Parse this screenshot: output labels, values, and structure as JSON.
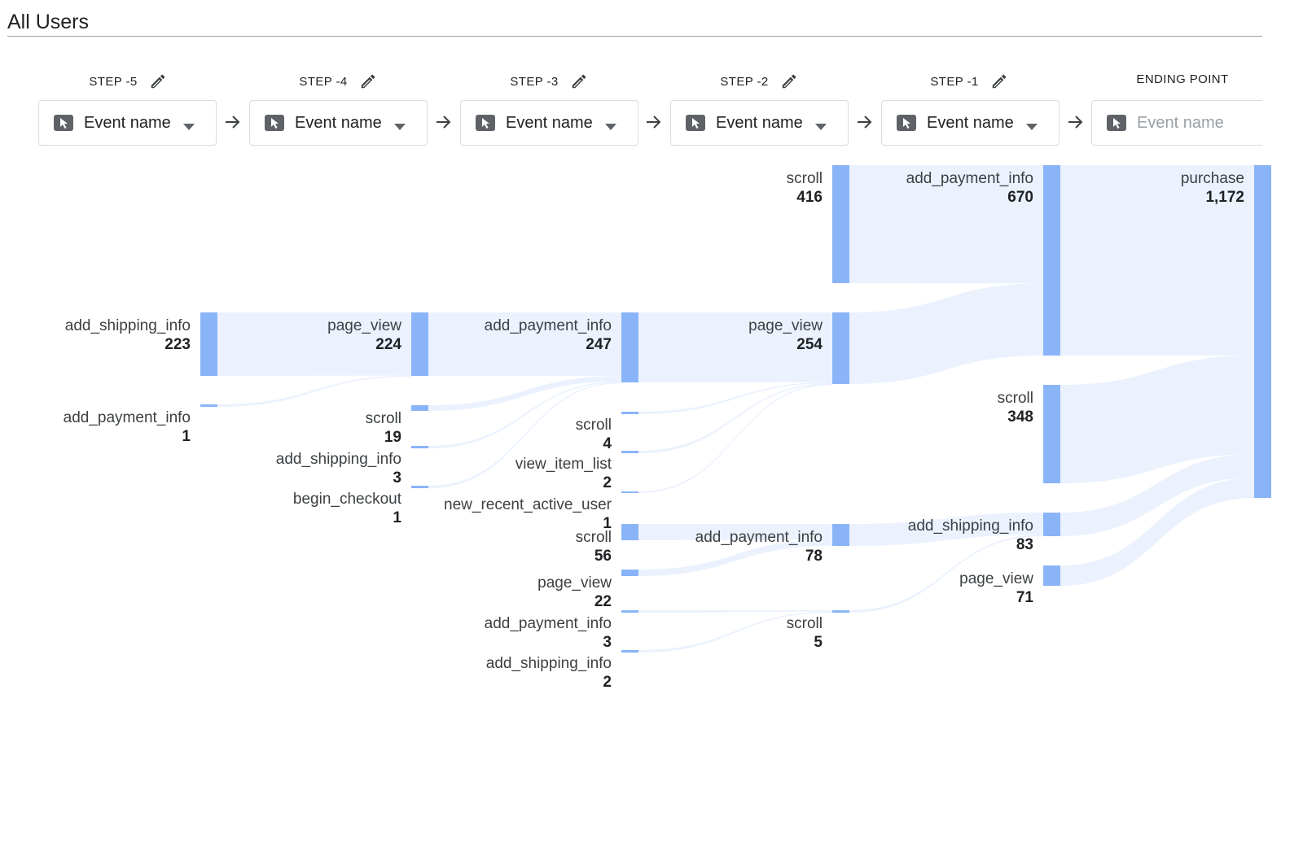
{
  "segment": {
    "title": "All Users"
  },
  "steps": [
    {
      "label": "STEP -5",
      "dropdown": "Event name",
      "placeholder": false
    },
    {
      "label": "STEP -4",
      "dropdown": "Event name",
      "placeholder": false
    },
    {
      "label": "STEP -3",
      "dropdown": "Event name",
      "placeholder": false
    },
    {
      "label": "STEP -2",
      "dropdown": "Event name",
      "placeholder": false
    },
    {
      "label": "STEP -1",
      "dropdown": "Event name",
      "placeholder": false
    },
    {
      "label": "ENDING POINT",
      "dropdown": "Event name",
      "placeholder": true
    }
  ],
  "icons": {
    "edit": "pencil-icon",
    "dropdown_type": "cursor-pointer-icon",
    "dropdown_caret": "caret-down-icon",
    "flow": "arrow-right-icon"
  },
  "colors": {
    "node": "#8ab4f8",
    "link": "#e8f0fe",
    "text": "#202124"
  },
  "flow": {
    "nodes": [
      {
        "step": 0,
        "name": "add_shipping_info",
        "count": "223"
      },
      {
        "step": 0,
        "name": "add_payment_info",
        "count": "1"
      },
      {
        "step": 1,
        "name": "page_view",
        "count": "224"
      },
      {
        "step": 1,
        "name": "scroll",
        "count": "19"
      },
      {
        "step": 1,
        "name": "add_shipping_info",
        "count": "3"
      },
      {
        "step": 1,
        "name": "begin_checkout",
        "count": "1"
      },
      {
        "step": 2,
        "name": "add_payment_info",
        "count": "247"
      },
      {
        "step": 2,
        "name": "scroll",
        "count": "4"
      },
      {
        "step": 2,
        "name": "view_item_list",
        "count": "2"
      },
      {
        "step": 2,
        "name": "new_recent_active_user",
        "count": "1"
      },
      {
        "step": 2,
        "name": "scroll",
        "count": "56"
      },
      {
        "step": 2,
        "name": "page_view",
        "count": "22"
      },
      {
        "step": 2,
        "name": "add_payment_info",
        "count": "3"
      },
      {
        "step": 2,
        "name": "add_shipping_info",
        "count": "2"
      },
      {
        "step": 3,
        "name": "scroll",
        "count": "416"
      },
      {
        "step": 3,
        "name": "page_view",
        "count": "254"
      },
      {
        "step": 3,
        "name": "add_payment_info",
        "count": "78"
      },
      {
        "step": 3,
        "name": "scroll",
        "count": "5"
      },
      {
        "step": 4,
        "name": "add_payment_info",
        "count": "670"
      },
      {
        "step": 4,
        "name": "scroll",
        "count": "348"
      },
      {
        "step": 4,
        "name": "add_shipping_info",
        "count": "83"
      },
      {
        "step": 4,
        "name": "page_view",
        "count": "71"
      },
      {
        "step": 5,
        "name": "purchase",
        "count": "1,172"
      }
    ],
    "links": [
      {
        "from": 0,
        "to": 2,
        "value": 223
      },
      {
        "from": 1,
        "to": 2,
        "value": 1
      },
      {
        "from": 2,
        "to": 6,
        "value": 224
      },
      {
        "from": 3,
        "to": 6,
        "value": 19
      },
      {
        "from": 4,
        "to": 6,
        "value": 3
      },
      {
        "from": 5,
        "to": 6,
        "value": 1
      },
      {
        "from": 6,
        "to": 15,
        "value": 247
      },
      {
        "from": 7,
        "to": 15,
        "value": 4
      },
      {
        "from": 8,
        "to": 15,
        "value": 2
      },
      {
        "from": 9,
        "to": 15,
        "value": 1
      },
      {
        "from": 10,
        "to": 16,
        "value": 56
      },
      {
        "from": 11,
        "to": 16,
        "value": 22
      },
      {
        "from": 12,
        "to": 17,
        "value": 3
      },
      {
        "from": 13,
        "to": 17,
        "value": 2
      },
      {
        "from": 14,
        "to": 18,
        "value": 416
      },
      {
        "from": 15,
        "to": 18,
        "value": 254
      },
      {
        "from": 16,
        "to": 20,
        "value": 78
      },
      {
        "from": 17,
        "to": 20,
        "value": 5
      },
      {
        "from": 18,
        "to": 22,
        "value": 670
      },
      {
        "from": 19,
        "to": 22,
        "value": 348
      },
      {
        "from": 20,
        "to": 22,
        "value": 83
      },
      {
        "from": 21,
        "to": 22,
        "value": 71
      }
    ]
  }
}
